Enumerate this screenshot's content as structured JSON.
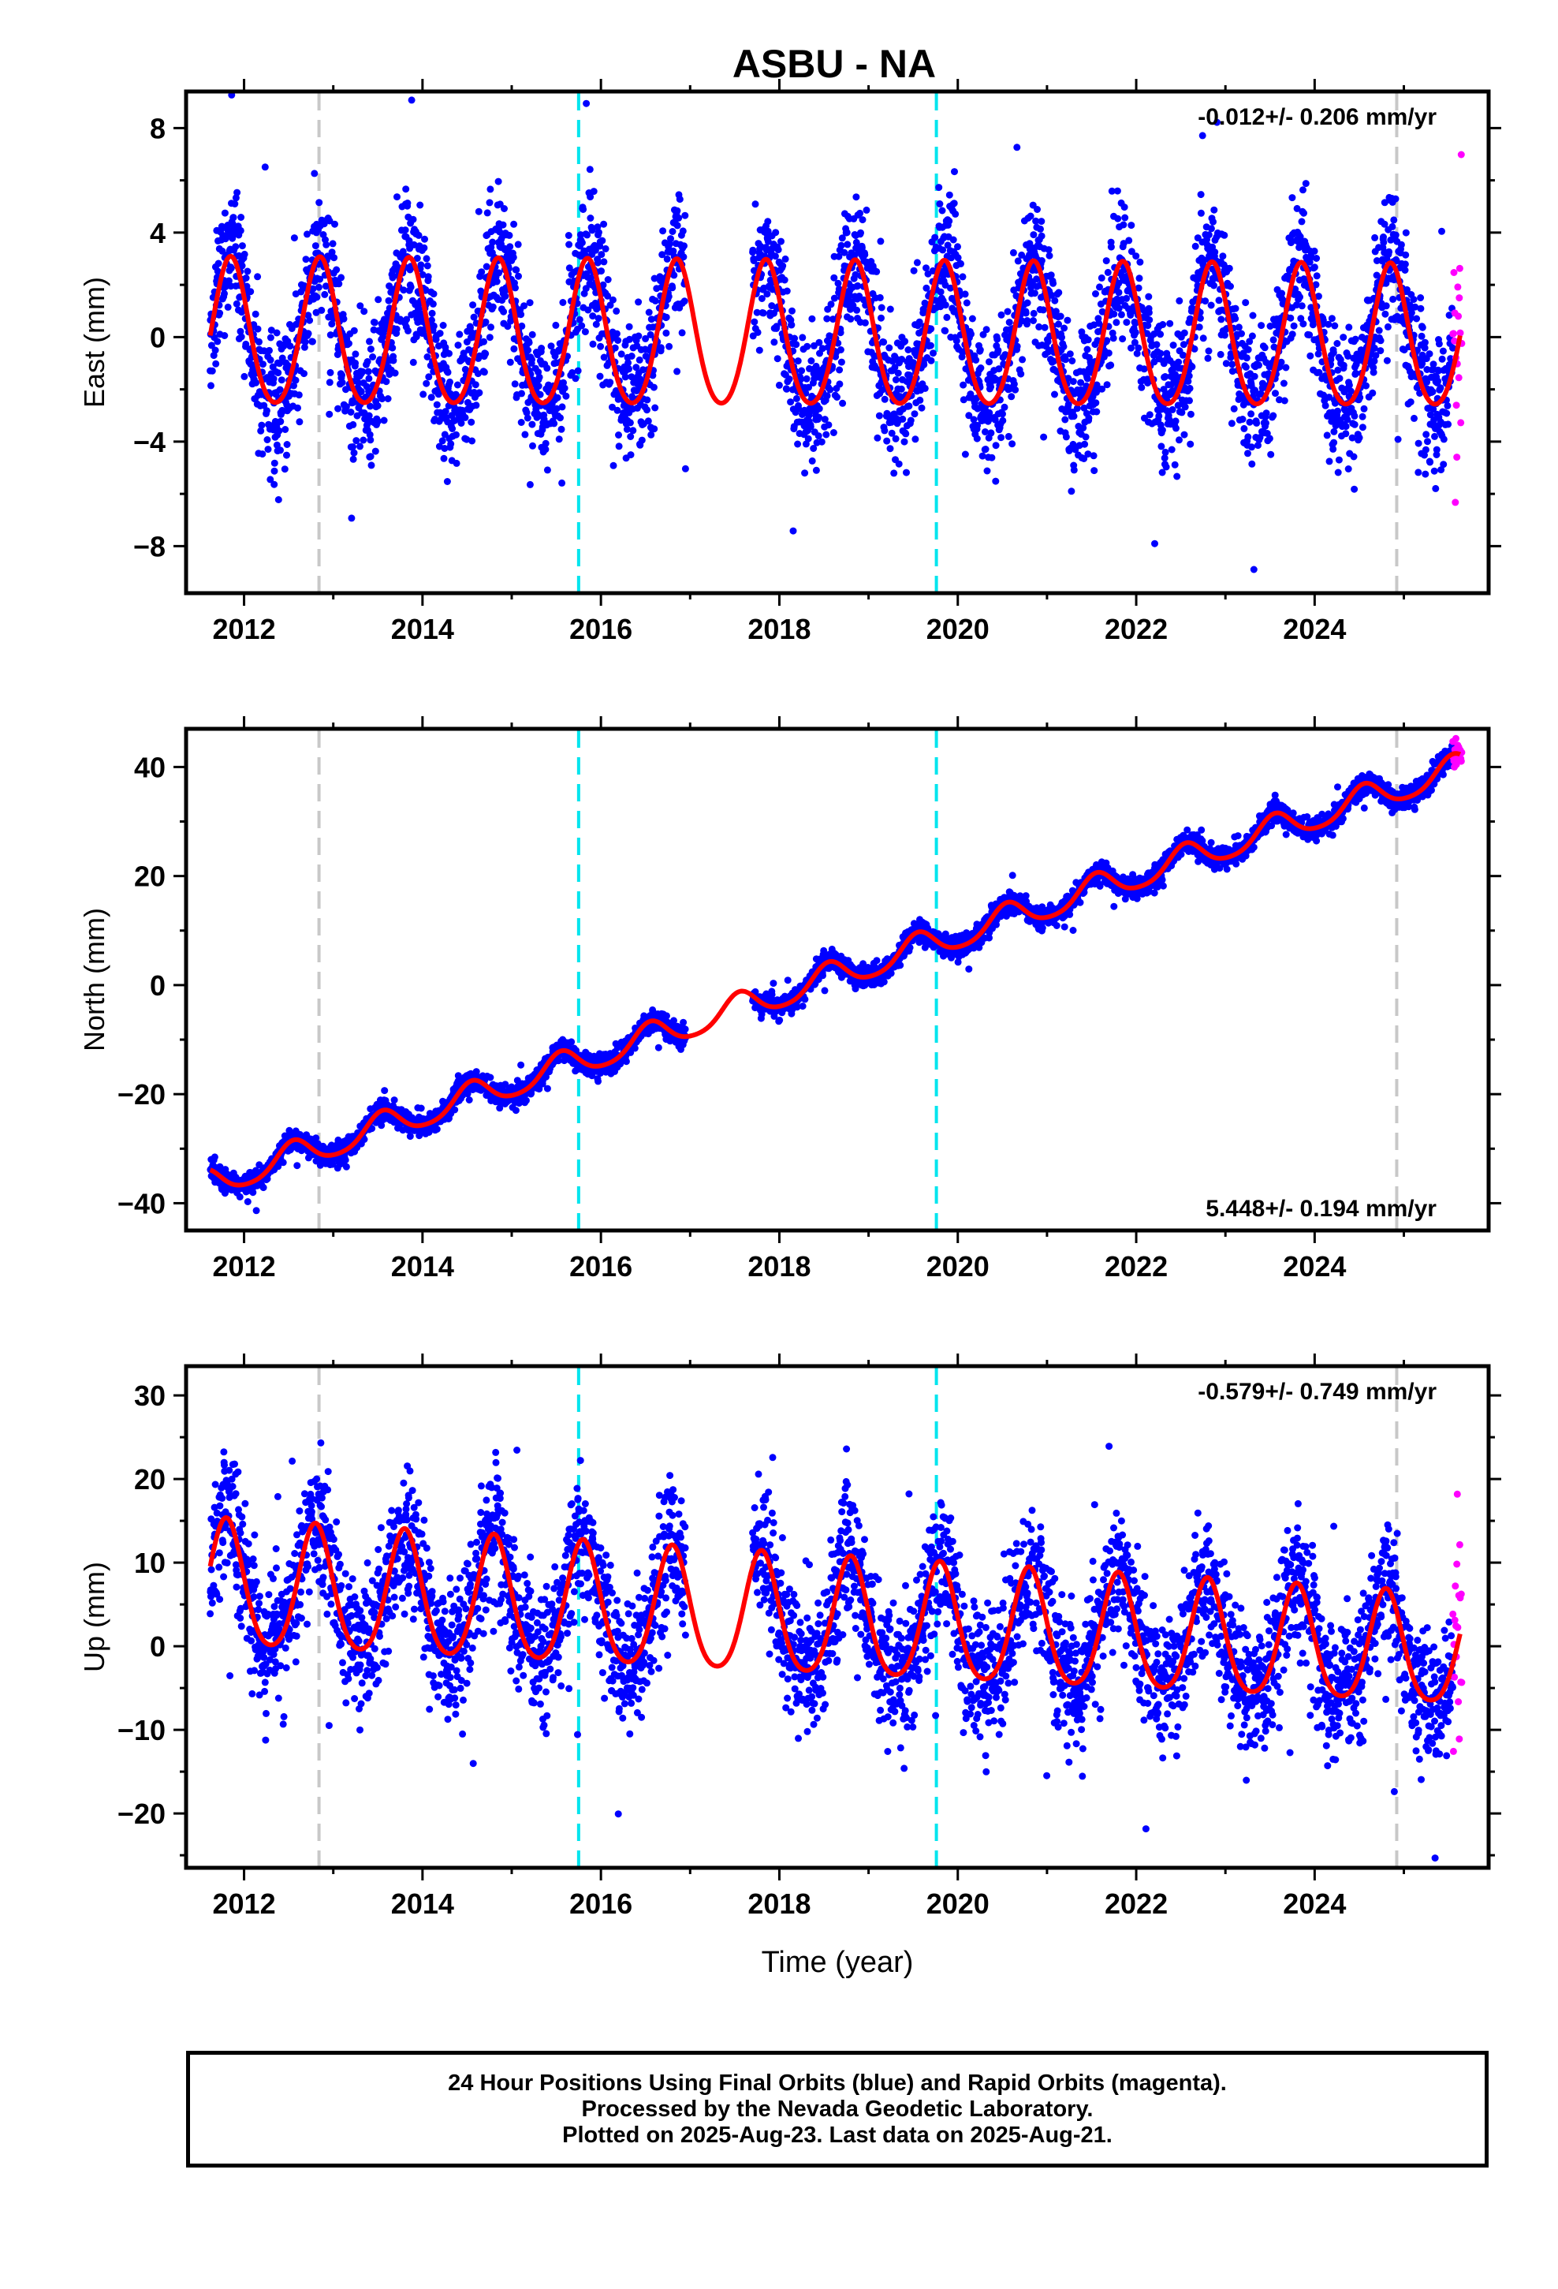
{
  "title": "ASBU - NA",
  "colors": {
    "final_orbits": "#0000ff",
    "rapid_orbits": "#ff00ff",
    "model": "#ff0000",
    "antenna_change": "#c8c8c8",
    "earthquake": "#00e5ee",
    "frame": "#000000"
  },
  "xticks": [
    "2012",
    "2014",
    "2016",
    "2018",
    "2020",
    "2022",
    "2024"
  ],
  "xlabel": "Time (year)",
  "footer": {
    "line1": "24 Hour Positions Using Final Orbits (blue) and Rapid Orbits (magenta).",
    "line2": "Processed by the Nevada Geodetic Laboratory.",
    "line3": "Plotted on 2025-Aug-23. Last data on 2025-Aug-21."
  },
  "chart_data": [
    {
      "type": "scatter",
      "component": "East",
      "ylabel": "East (mm)",
      "xlim": [
        2011.35,
        2025.95
      ],
      "ylim": [
        -9.8,
        9.4
      ],
      "yticks": [
        -8,
        -4,
        0,
        4,
        8
      ],
      "rate_label": "-0.012+/- 0.206 mm/yr",
      "rate_position": "top-right",
      "grid": false,
      "gap": [
        2016.95,
        2017.7
      ],
      "data_range": [
        2011.62,
        2025.63
      ],
      "rapid_range": [
        2025.55,
        2025.65
      ],
      "model": {
        "trend": -0.012,
        "offset": 0.0,
        "annual_amp_early": 2.8,
        "annual_amp_late": 2.7,
        "semiannual_amp": 0.3,
        "phase_peak": 0.85
      },
      "scatter_sd": 1.3,
      "vertical_lines": [
        {
          "year": 2012.84,
          "kind": "antenna_change"
        },
        {
          "year": 2015.75,
          "kind": "earthquake"
        },
        {
          "year": 2019.76,
          "kind": "earthquake"
        },
        {
          "year": 2024.92,
          "kind": "antenna_change"
        }
      ]
    },
    {
      "type": "scatter",
      "component": "North",
      "ylabel": "North (mm)",
      "xlim": [
        2011.35,
        2025.95
      ],
      "ylim": [
        -45,
        47
      ],
      "yticks": [
        -40,
        -20,
        0,
        20,
        40
      ],
      "rate_label": "5.448+/- 0.194 mm/yr",
      "rate_position": "bottom-right",
      "grid": false,
      "gap": [
        2016.95,
        2017.7
      ],
      "data_range": [
        2011.62,
        2025.63
      ],
      "rapid_range": [
        2025.55,
        2025.65
      ],
      "model": {
        "trend": 5.448,
        "offset": -36.5,
        "annual_amp_early": 2.6,
        "annual_amp_late": 2.6,
        "semiannual_amp": 0.4,
        "phase_peak": 0.55
      },
      "scatter_sd": 1.0,
      "vertical_lines": [
        {
          "year": 2012.84,
          "kind": "antenna_change"
        },
        {
          "year": 2015.75,
          "kind": "earthquake"
        },
        {
          "year": 2019.76,
          "kind": "earthquake"
        },
        {
          "year": 2024.92,
          "kind": "antenna_change"
        }
      ]
    },
    {
      "type": "scatter",
      "component": "Up",
      "ylabel": "Up (mm)",
      "xlim": [
        2011.35,
        2025.95
      ],
      "ylim": [
        -26.5,
        33.5
      ],
      "yticks": [
        -20,
        -10,
        0,
        10,
        20,
        30
      ],
      "rate_label": "-0.579+/- 0.749 mm/yr",
      "rate_position": "top-right",
      "grid": false,
      "gap": [
        2016.95,
        2017.7
      ],
      "data_range": [
        2011.62,
        2025.63
      ],
      "rapid_range": [
        2025.55,
        2025.65
      ],
      "model": {
        "trend": -0.579,
        "offset": 7.0,
        "annual_amp_early": 7.5,
        "annual_amp_late": 6.5,
        "semiannual_amp": 1.0,
        "phase_peak": 0.8
      },
      "scatter_sd": 4.0,
      "vertical_lines": [
        {
          "year": 2012.84,
          "kind": "antenna_change"
        },
        {
          "year": 2015.75,
          "kind": "earthquake"
        },
        {
          "year": 2019.76,
          "kind": "earthquake"
        },
        {
          "year": 2024.92,
          "kind": "antenna_change"
        }
      ]
    }
  ]
}
